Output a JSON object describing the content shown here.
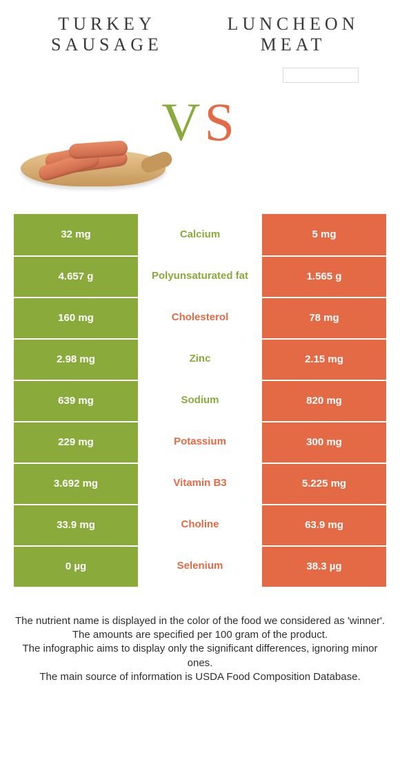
{
  "colors": {
    "left": "#8aaa3b",
    "right": "#e36a45",
    "text": "#3a3a3a"
  },
  "header": {
    "left_line1": "TURKEY",
    "left_line2": "SAUSAGE",
    "right_line1": "LUNCHEON",
    "right_line2": "MEAT",
    "vs": "VS"
  },
  "nutrients": [
    {
      "name": "Calcium",
      "left": "32 mg",
      "right": "5 mg",
      "winner": "left"
    },
    {
      "name": "Polyunsaturated fat",
      "left": "4.657 g",
      "right": "1.565 g",
      "winner": "left"
    },
    {
      "name": "Cholesterol",
      "left": "160 mg",
      "right": "78 mg",
      "winner": "right"
    },
    {
      "name": "Zinc",
      "left": "2.98 mg",
      "right": "2.15 mg",
      "winner": "left"
    },
    {
      "name": "Sodium",
      "left": "639 mg",
      "right": "820 mg",
      "winner": "left"
    },
    {
      "name": "Potassium",
      "left": "229 mg",
      "right": "300 mg",
      "winner": "right"
    },
    {
      "name": "Vitamin B3",
      "left": "3.692 mg",
      "right": "5.225 mg",
      "winner": "right"
    },
    {
      "name": "Choline",
      "left": "33.9 mg",
      "right": "63.9 mg",
      "winner": "right"
    },
    {
      "name": "Selenium",
      "left": "0 µg",
      "right": "38.3 µg",
      "winner": "right"
    }
  ],
  "footer": {
    "l1": "The nutrient name is displayed in the color of the food we considered as 'winner'.",
    "l2": "The amounts are specified per 100 gram of the product.",
    "l3": "The infographic aims to display only the significant differences, ignoring minor ones.",
    "l4": "The main source of information is USDA Food Composition Database."
  }
}
